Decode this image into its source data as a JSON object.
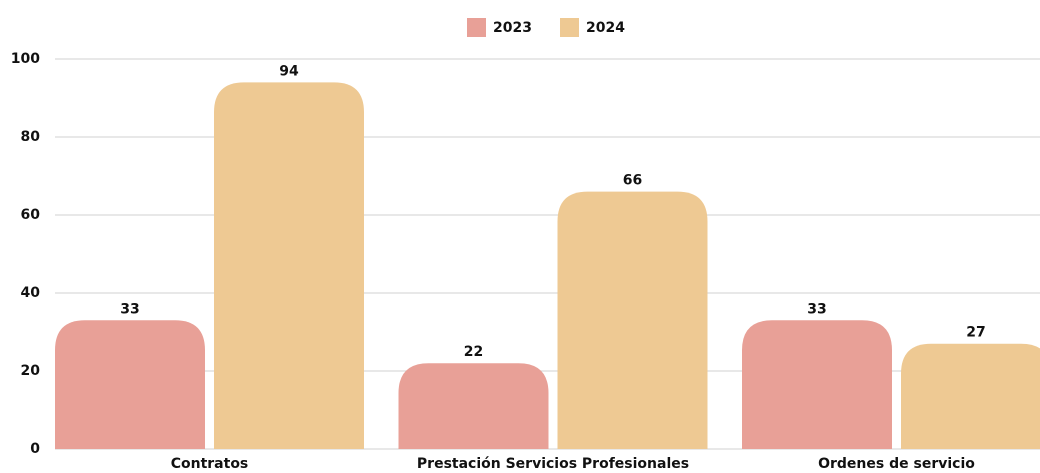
{
  "chart_data": {
    "type": "bar",
    "categories": [
      "Contratos",
      "Prestación Servicios Profesionales",
      "Ordenes de servicio"
    ],
    "series": [
      {
        "name": "2023",
        "color": "#e8a097",
        "values": [
          33,
          22,
          33
        ]
      },
      {
        "name": "2024",
        "color": "#eec993",
        "values": [
          94,
          66,
          27
        ]
      }
    ],
    "ylim": [
      0,
      100
    ],
    "yticks": [
      0,
      20,
      40,
      60,
      80,
      100
    ],
    "grid": true,
    "legend": "top"
  }
}
